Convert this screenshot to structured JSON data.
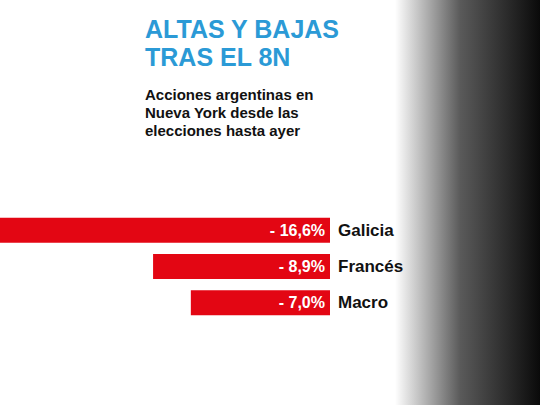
{
  "chart_data": {
    "type": "bar",
    "orientation": "horizontal",
    "title": "ALTAS Y BAJAS TRAS EL 8N",
    "subtitle": "Acciones argentinas en Nueva York desde las elecciones hasta ayer",
    "categories": [
      "Galicia",
      "Francés",
      "Macro"
    ],
    "values": [
      -16.6,
      -8.9,
      -7.0
    ],
    "value_labels": [
      "- 16,6%",
      "- 8,9%",
      "- 7,0%"
    ],
    "color": "#e30613",
    "xlim": [
      -16.6,
      0
    ],
    "grid": false,
    "data_labels": true,
    "tick_labels": "y"
  }
}
